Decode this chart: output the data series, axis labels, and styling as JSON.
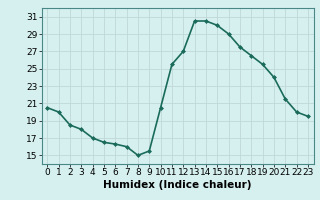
{
  "x": [
    0,
    1,
    2,
    3,
    4,
    5,
    6,
    7,
    8,
    9,
    10,
    11,
    12,
    13,
    14,
    15,
    16,
    17,
    18,
    19,
    20,
    21,
    22,
    23
  ],
  "y": [
    20.5,
    20.0,
    18.5,
    18.0,
    17.0,
    16.5,
    16.3,
    16.0,
    15.0,
    15.5,
    20.5,
    25.5,
    27.0,
    30.5,
    30.5,
    30.0,
    29.0,
    27.5,
    26.5,
    25.5,
    24.0,
    21.5,
    20.0,
    19.5
  ],
  "line_color": "#1a6b5a",
  "marker": "D",
  "marker_size": 2,
  "bg_color": "#d6f0f0",
  "grid_color": "#c0d8d8",
  "xlabel": "Humidex (Indice chaleur)",
  "xlim": [
    -0.5,
    23.5
  ],
  "ylim": [
    14,
    32
  ],
  "yticks": [
    15,
    17,
    19,
    21,
    23,
    25,
    27,
    29,
    31
  ],
  "xticks": [
    0,
    1,
    2,
    3,
    4,
    5,
    6,
    7,
    8,
    9,
    10,
    11,
    12,
    13,
    14,
    15,
    16,
    17,
    18,
    19,
    20,
    21,
    22,
    23
  ],
  "xlabel_fontsize": 7.5,
  "tick_fontsize": 6.5,
  "linewidth": 1.2
}
